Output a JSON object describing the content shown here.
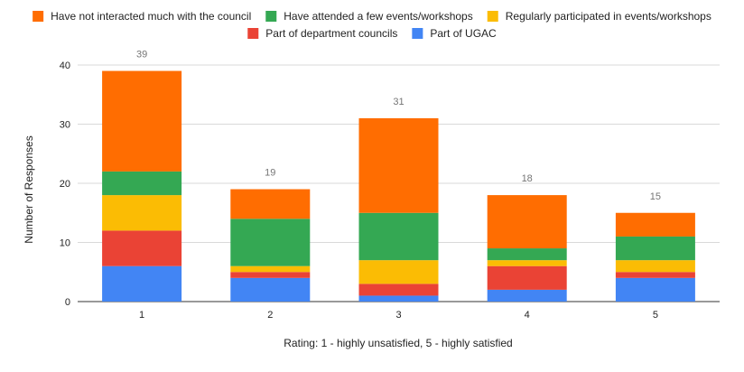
{
  "chart_data": {
    "type": "bar",
    "stacked": true,
    "title": "",
    "xlabel": "Rating: 1 - highly unsatisfied, 5 - highly satisfied",
    "ylabel": "Number of Responses",
    "ylim": [
      0,
      40
    ],
    "yticks": [
      "0",
      "10",
      "20",
      "30",
      "40"
    ],
    "grid": true,
    "legend_position": "top",
    "categories": [
      "1",
      "2",
      "3",
      "4",
      "5"
    ],
    "series": [
      {
        "name": "Part of UGAC",
        "color": "#4285f4",
        "values": [
          6,
          4,
          1,
          2,
          4
        ]
      },
      {
        "name": "Part of department councils",
        "color": "#ea4335",
        "values": [
          6,
          1,
          2,
          4,
          1
        ]
      },
      {
        "name": "Regularly participated in events/workshops",
        "color": "#fbbc04",
        "values": [
          6,
          1,
          4,
          1,
          2
        ]
      },
      {
        "name": "Have attended a few events/workshops",
        "color": "#34a853",
        "values": [
          4,
          8,
          8,
          2,
          4
        ]
      },
      {
        "name": "Have not interacted much with the council",
        "color": "#ff6d01",
        "values": [
          17,
          5,
          16,
          9,
          4
        ]
      }
    ],
    "totals": [
      "39",
      "19",
      "31",
      "18",
      "15"
    ],
    "legend_order": [
      4,
      3,
      2,
      1,
      0
    ]
  }
}
